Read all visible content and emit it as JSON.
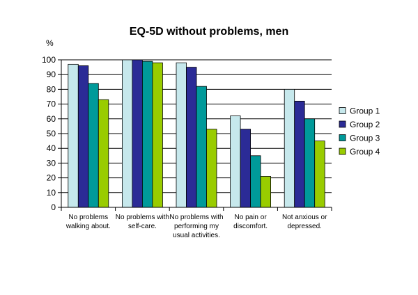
{
  "chart_data": {
    "type": "bar",
    "title": "EQ-5D without problems, men",
    "ylabel": "%",
    "xlabel": "",
    "ylim": [
      0,
      100
    ],
    "yticks": [
      0,
      10,
      20,
      30,
      40,
      50,
      60,
      70,
      80,
      90,
      100
    ],
    "grid": true,
    "legend_position": "right",
    "categories": [
      [
        "No problems",
        "walking about."
      ],
      [
        "No problems with",
        "self-care."
      ],
      [
        "No problems with",
        "performing my",
        "usual activities."
      ],
      [
        "No pain or",
        "discomfort."
      ],
      [
        "Not anxious or",
        "depressed."
      ]
    ],
    "series": [
      {
        "name": "Group 1",
        "color": "#c6e8ec",
        "values": [
          97,
          100,
          98,
          62,
          80
        ]
      },
      {
        "name": "Group 2",
        "color": "#2b2b96",
        "values": [
          96,
          100,
          95,
          53,
          72
        ]
      },
      {
        "name": "Group 3",
        "color": "#009a9a",
        "values": [
          84,
          99,
          82,
          35,
          60
        ]
      },
      {
        "name": "Group 4",
        "color": "#99cc00",
        "values": [
          73,
          98,
          53,
          21,
          45
        ]
      }
    ]
  }
}
